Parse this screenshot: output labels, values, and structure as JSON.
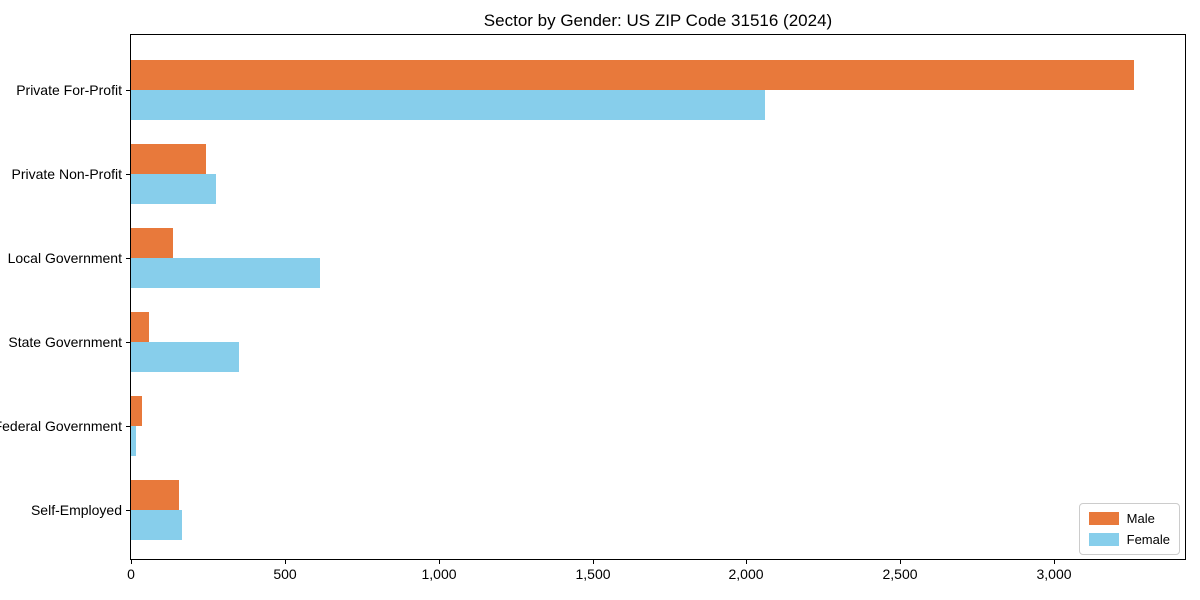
{
  "chart_data": {
    "type": "bar",
    "orientation": "horizontal",
    "title": "Sector by Gender: US ZIP Code 31516 (2024)",
    "categories": [
      "Private For-Profit",
      "Private Non-Profit",
      "Local Government",
      "State Government",
      "Federal Government",
      "Self-Employed"
    ],
    "series": [
      {
        "name": "Male",
        "color": "#e8793b",
        "values": [
          3260,
          245,
          135,
          60,
          35,
          155
        ]
      },
      {
        "name": "Female",
        "color": "#87ceeb",
        "values": [
          2060,
          275,
          615,
          350,
          15,
          165
        ]
      }
    ],
    "xlabel": "",
    "ylabel": "",
    "xlim": [
      0,
      3425
    ],
    "x_ticks": [
      0,
      500,
      1000,
      1500,
      2000,
      2500,
      3000
    ],
    "x_tick_labels": [
      "0",
      "500",
      "1,000",
      "1,500",
      "2,000",
      "2,500",
      "3,000"
    ],
    "grid": false,
    "legend_position": "lower right"
  }
}
